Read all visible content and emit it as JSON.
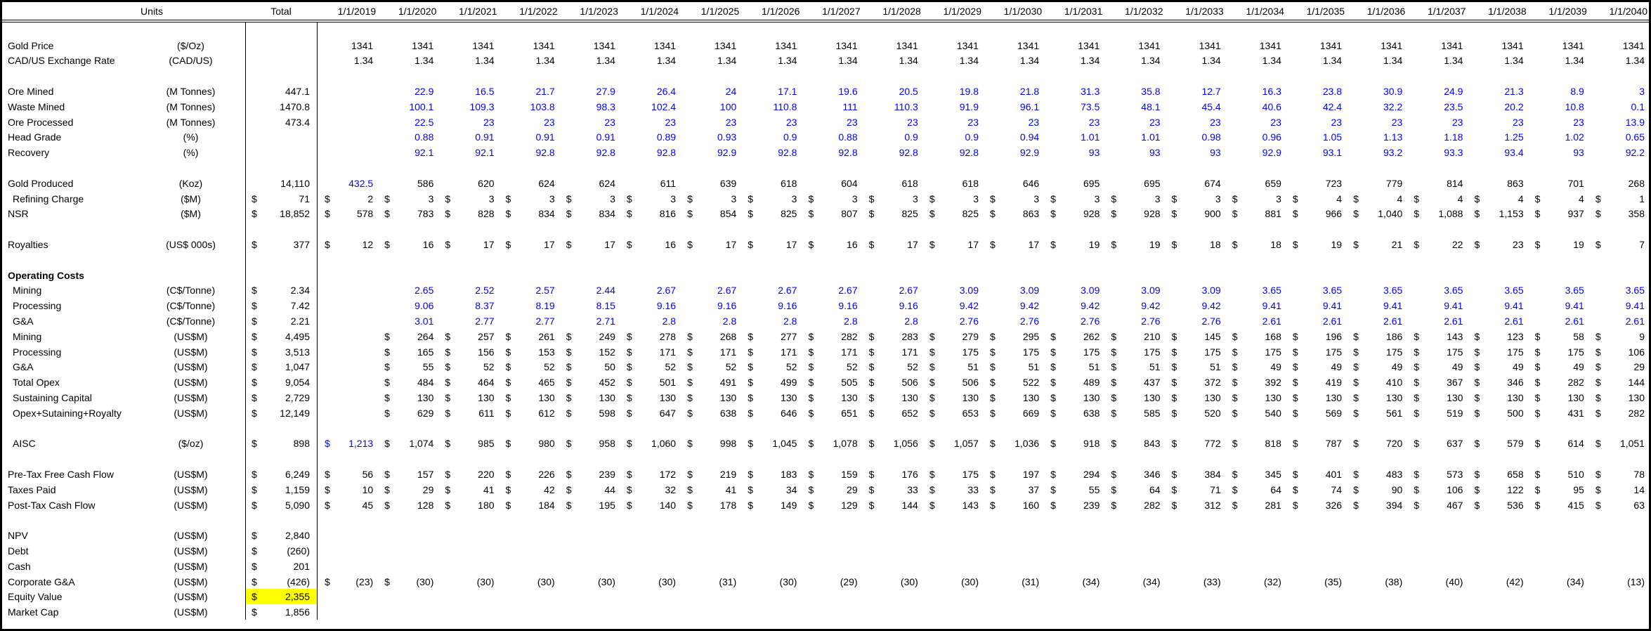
{
  "app": {
    "kind": "spreadsheet-financial-model",
    "description": "Gold mining cash flow model"
  },
  "colors": {
    "input_blue": "#0000ff",
    "text_black": "#000000",
    "highlight_yellow": "#ffff00",
    "grid_line": "#000000",
    "background": "#ffffff"
  },
  "table": {
    "header": {
      "units_label": "Units",
      "total_label": "Total",
      "year_columns": [
        "1/1/2019",
        "1/1/2020",
        "1/1/2021",
        "1/1/2022",
        "1/1/2023",
        "1/1/2024",
        "1/1/2025",
        "1/1/2026",
        "1/1/2027",
        "1/1/2028",
        "1/1/2029",
        "1/1/2030",
        "1/1/2031",
        "1/1/2032",
        "1/1/2033",
        "1/1/2034",
        "1/1/2035",
        "1/1/2036",
        "1/1/2037",
        "1/1/2038",
        "1/1/2039",
        "1/1/2040"
      ]
    },
    "currency_symbol": "$",
    "rows": [
      {
        "kind": "spacer"
      },
      {
        "kind": "data",
        "label": "Gold Price",
        "units": "($/Oz)",
        "indent": false,
        "total": null,
        "cur": "none",
        "blue": "none",
        "values": [
          "1341",
          "1341",
          "1341",
          "1341",
          "1341",
          "1341",
          "1341",
          "1341",
          "1341",
          "1341",
          "1341",
          "1341",
          "1341",
          "1341",
          "1341",
          "1341",
          "1341",
          "1341",
          "1341",
          "1341",
          "1341",
          "1341"
        ]
      },
      {
        "kind": "data",
        "label": "CAD/US Exchange Rate",
        "units": "(CAD/US)",
        "indent": false,
        "total": null,
        "cur": "none",
        "blue": "none",
        "values": [
          "1.34",
          "1.34",
          "1.34",
          "1.34",
          "1.34",
          "1.34",
          "1.34",
          "1.34",
          "1.34",
          "1.34",
          "1.34",
          "1.34",
          "1.34",
          "1.34",
          "1.34",
          "1.34",
          "1.34",
          "1.34",
          "1.34",
          "1.34",
          "1.34",
          "1.34"
        ]
      },
      {
        "kind": "spacer"
      },
      {
        "kind": "data",
        "label": "Ore Mined",
        "units": "(M Tonnes)",
        "indent": false,
        "total": {
          "v": "447.1",
          "cur": false,
          "hl": false
        },
        "cur": "none",
        "blue": "all",
        "values": [
          "",
          "22.9",
          "16.5",
          "21.7",
          "27.9",
          "26.4",
          "24",
          "17.1",
          "19.6",
          "20.5",
          "19.8",
          "21.8",
          "31.3",
          "35.8",
          "12.7",
          "16.3",
          "23.8",
          "30.9",
          "24.9",
          "21.3",
          "8.9",
          "3"
        ]
      },
      {
        "kind": "data",
        "label": "Waste Mined",
        "units": "(M Tonnes)",
        "indent": false,
        "total": {
          "v": "1470.8",
          "cur": false,
          "hl": false
        },
        "cur": "none",
        "blue": "all",
        "values": [
          "",
          "100.1",
          "109.3",
          "103.8",
          "98.3",
          "102.4",
          "100",
          "110.8",
          "111",
          "110.3",
          "91.9",
          "96.1",
          "73.5",
          "48.1",
          "45.4",
          "40.6",
          "42.4",
          "32.2",
          "23.5",
          "20.2",
          "10.8",
          "0.1"
        ]
      },
      {
        "kind": "data",
        "label": "Ore Processed",
        "units": "(M Tonnes)",
        "indent": false,
        "total": {
          "v": "473.4",
          "cur": false,
          "hl": false
        },
        "cur": "none",
        "blue": "all",
        "values": [
          "",
          "22.5",
          "23",
          "23",
          "23",
          "23",
          "23",
          "23",
          "23",
          "23",
          "23",
          "23",
          "23",
          "23",
          "23",
          "23",
          "23",
          "23",
          "23",
          "23",
          "23",
          "13.9"
        ]
      },
      {
        "kind": "data",
        "label": "Head Grade",
        "units": "(%)",
        "indent": false,
        "total": null,
        "cur": "none",
        "blue": "all",
        "values": [
          "",
          "0.88",
          "0.91",
          "0.91",
          "0.91",
          "0.89",
          "0.93",
          "0.9",
          "0.88",
          "0.9",
          "0.9",
          "0.94",
          "1.01",
          "1.01",
          "0.98",
          "0.96",
          "1.05",
          "1.13",
          "1.18",
          "1.25",
          "1.02",
          "0.65"
        ]
      },
      {
        "kind": "data",
        "label": "Recovery",
        "units": "(%)",
        "indent": false,
        "total": null,
        "cur": "none",
        "blue": "all",
        "values": [
          "",
          "92.1",
          "92.1",
          "92.8",
          "92.8",
          "92.8",
          "92.9",
          "92.8",
          "92.8",
          "92.8",
          "92.8",
          "92.9",
          "93",
          "93",
          "93",
          "92.9",
          "93.1",
          "93.2",
          "93.3",
          "93.4",
          "93",
          "92.2"
        ]
      },
      {
        "kind": "spacer"
      },
      {
        "kind": "data",
        "label": "Gold Produced",
        "units": "(Koz)",
        "indent": false,
        "total": {
          "v": "14,110",
          "cur": false,
          "hl": false
        },
        "cur": "none",
        "blue": [
          0
        ],
        "values": [
          "432.5",
          "586",
          "620",
          "624",
          "624",
          "611",
          "639",
          "618",
          "604",
          "618",
          "618",
          "646",
          "695",
          "695",
          "674",
          "659",
          "723",
          "779",
          "814",
          "863",
          "701",
          "268"
        ]
      },
      {
        "kind": "data",
        "label": "Refining Charge",
        "units": "($M)",
        "indent": true,
        "total": {
          "v": "71",
          "cur": true,
          "hl": false
        },
        "cur": "all",
        "blue": "none",
        "values": [
          "2",
          "3",
          "3",
          "3",
          "3",
          "3",
          "3",
          "3",
          "3",
          "3",
          "3",
          "3",
          "3",
          "3",
          "3",
          "3",
          "4",
          "4",
          "4",
          "4",
          "4",
          "1"
        ]
      },
      {
        "kind": "data",
        "label": "NSR",
        "units": "($M)",
        "indent": false,
        "total": {
          "v": "18,852",
          "cur": true,
          "hl": false
        },
        "cur": "all",
        "blue": "none",
        "values": [
          "578",
          "783",
          "828",
          "834",
          "834",
          "816",
          "854",
          "825",
          "807",
          "825",
          "825",
          "863",
          "928",
          "928",
          "900",
          "881",
          "966",
          "1,040",
          "1,088",
          "1,153",
          "937",
          "358"
        ]
      },
      {
        "kind": "spacer"
      },
      {
        "kind": "data",
        "label": "Royalties",
        "units": "(US$ 000s)",
        "indent": false,
        "total": {
          "v": "377",
          "cur": true,
          "hl": false
        },
        "cur": "all",
        "blue": "none",
        "values": [
          "12",
          "16",
          "17",
          "17",
          "17",
          "16",
          "17",
          "17",
          "16",
          "17",
          "17",
          "17",
          "19",
          "19",
          "18",
          "18",
          "19",
          "21",
          "22",
          "23",
          "19",
          "7"
        ]
      },
      {
        "kind": "spacer"
      },
      {
        "kind": "section",
        "label": "Operating Costs",
        "units": "",
        "total": null,
        "values": []
      },
      {
        "kind": "data",
        "label": "Mining",
        "units": "(C$/Tonne)",
        "indent": true,
        "total": {
          "v": "2.34",
          "cur": true,
          "hl": false
        },
        "cur": "none",
        "blue": "all",
        "values": [
          "",
          "2.65",
          "2.52",
          "2.57",
          "2.44",
          "2.67",
          "2.67",
          "2.67",
          "2.67",
          "2.67",
          "3.09",
          "3.09",
          "3.09",
          "3.09",
          "3.09",
          "3.65",
          "3.65",
          "3.65",
          "3.65",
          "3.65",
          "3.65",
          "3.65"
        ]
      },
      {
        "kind": "data",
        "label": "Processing",
        "units": "(C$/Tonne)",
        "indent": true,
        "total": {
          "v": "7.42",
          "cur": true,
          "hl": false
        },
        "cur": "none",
        "blue": "all",
        "values": [
          "",
          "9.06",
          "8.37",
          "8.19",
          "8.15",
          "9.16",
          "9.16",
          "9.16",
          "9.16",
          "9.16",
          "9.42",
          "9.42",
          "9.42",
          "9.42",
          "9.42",
          "9.41",
          "9.41",
          "9.41",
          "9.41",
          "9.41",
          "9.41",
          "9.41"
        ]
      },
      {
        "kind": "data",
        "label": "G&A",
        "units": "(C$/Tonne)",
        "indent": true,
        "total": {
          "v": "2.21",
          "cur": true,
          "hl": false
        },
        "cur": "none",
        "blue": "all",
        "values": [
          "",
          "3.01",
          "2.77",
          "2.77",
          "2.71",
          "2.8",
          "2.8",
          "2.8",
          "2.8",
          "2.8",
          "2.76",
          "2.76",
          "2.76",
          "2.76",
          "2.76",
          "2.61",
          "2.61",
          "2.61",
          "2.61",
          "2.61",
          "2.61",
          "2.61"
        ]
      },
      {
        "kind": "data",
        "label": "Mining",
        "units": "(US$M)",
        "indent": true,
        "total": {
          "v": "4,495",
          "cur": true,
          "hl": false
        },
        "cur": "all",
        "blue": "none",
        "values": [
          "",
          "264",
          "257",
          "261",
          "249",
          "278",
          "268",
          "277",
          "282",
          "283",
          "279",
          "295",
          "262",
          "210",
          "145",
          "168",
          "196",
          "186",
          "143",
          "123",
          "58",
          "9"
        ]
      },
      {
        "kind": "data",
        "label": "Processing",
        "units": "(US$M)",
        "indent": true,
        "total": {
          "v": "3,513",
          "cur": true,
          "hl": false
        },
        "cur": "all",
        "blue": "none",
        "values": [
          "",
          "165",
          "156",
          "153",
          "152",
          "171",
          "171",
          "171",
          "171",
          "171",
          "175",
          "175",
          "175",
          "175",
          "175",
          "175",
          "175",
          "175",
          "175",
          "175",
          "175",
          "106"
        ]
      },
      {
        "kind": "data",
        "label": "G&A",
        "units": "(US$M)",
        "indent": true,
        "total": {
          "v": "1,047",
          "cur": true,
          "hl": false
        },
        "cur": "all",
        "blue": "none",
        "values": [
          "",
          "55",
          "52",
          "52",
          "50",
          "52",
          "52",
          "52",
          "52",
          "52",
          "51",
          "51",
          "51",
          "51",
          "51",
          "49",
          "49",
          "49",
          "49",
          "49",
          "49",
          "29"
        ]
      },
      {
        "kind": "data",
        "label": "Total Opex",
        "units": "(US$M)",
        "indent": true,
        "total": {
          "v": "9,054",
          "cur": true,
          "hl": false
        },
        "cur": "all",
        "blue": "none",
        "values": [
          "",
          "484",
          "464",
          "465",
          "452",
          "501",
          "491",
          "499",
          "505",
          "506",
          "506",
          "522",
          "489",
          "437",
          "372",
          "392",
          "419",
          "410",
          "367",
          "346",
          "282",
          "144"
        ]
      },
      {
        "kind": "data",
        "label": "Sustaining Capital",
        "units": "(US$M)",
        "indent": true,
        "total": {
          "v": "2,729",
          "cur": true,
          "hl": false
        },
        "cur": "all",
        "blue": "none",
        "values": [
          "",
          "130",
          "130",
          "130",
          "130",
          "130",
          "130",
          "130",
          "130",
          "130",
          "130",
          "130",
          "130",
          "130",
          "130",
          "130",
          "130",
          "130",
          "130",
          "130",
          "130",
          "130"
        ]
      },
      {
        "kind": "data",
        "label": "Opex+Sutaining+Royalty",
        "units": "(US$M)",
        "indent": true,
        "total": {
          "v": "12,149",
          "cur": true,
          "hl": false
        },
        "cur": "all",
        "blue": "none",
        "values": [
          "",
          "629",
          "611",
          "612",
          "598",
          "647",
          "638",
          "646",
          "651",
          "652",
          "653",
          "669",
          "638",
          "585",
          "520",
          "540",
          "569",
          "561",
          "519",
          "500",
          "431",
          "282"
        ]
      },
      {
        "kind": "spacer"
      },
      {
        "kind": "data",
        "label": "AISC",
        "units": "($/oz)",
        "indent": true,
        "total": {
          "v": "898",
          "cur": true,
          "hl": false
        },
        "cur": "all",
        "blue": [
          0
        ],
        "values": [
          "1,213",
          "1,074",
          "985",
          "980",
          "958",
          "1,060",
          "998",
          "1,045",
          "1,078",
          "1,056",
          "1,057",
          "1,036",
          "918",
          "843",
          "772",
          "818",
          "787",
          "720",
          "637",
          "579",
          "614",
          "1,051"
        ]
      },
      {
        "kind": "spacer"
      },
      {
        "kind": "data",
        "label": "Pre-Tax Free Cash Flow",
        "units": "(US$M)",
        "indent": false,
        "total": {
          "v": "6,249",
          "cur": true,
          "hl": false
        },
        "cur": "all",
        "blue": "none",
        "values": [
          "56",
          "157",
          "220",
          "226",
          "239",
          "172",
          "219",
          "183",
          "159",
          "176",
          "175",
          "197",
          "294",
          "346",
          "384",
          "345",
          "401",
          "483",
          "573",
          "658",
          "510",
          "78"
        ]
      },
      {
        "kind": "data",
        "label": "Taxes Paid",
        "units": "(US$M)",
        "indent": false,
        "total": {
          "v": "1,159",
          "cur": true,
          "hl": false
        },
        "cur": "all",
        "blue": "none",
        "values": [
          "10",
          "29",
          "41",
          "42",
          "44",
          "32",
          "41",
          "34",
          "29",
          "33",
          "33",
          "37",
          "55",
          "64",
          "71",
          "64",
          "74",
          "90",
          "106",
          "122",
          "95",
          "14"
        ]
      },
      {
        "kind": "data",
        "label": "Post-Tax Cash Flow",
        "units": "(US$M)",
        "indent": false,
        "total": {
          "v": "5,090",
          "cur": true,
          "hl": false
        },
        "cur": "all",
        "blue": "none",
        "values": [
          "45",
          "128",
          "180",
          "184",
          "195",
          "140",
          "178",
          "149",
          "129",
          "144",
          "143",
          "160",
          "239",
          "282",
          "312",
          "281",
          "326",
          "394",
          "467",
          "536",
          "415",
          "63"
        ]
      },
      {
        "kind": "spacer"
      },
      {
        "kind": "data",
        "label": "NPV",
        "units": "(US$M)",
        "indent": false,
        "total": {
          "v": "2,840",
          "cur": true,
          "hl": false
        },
        "cur": "none",
        "blue": "none",
        "values": []
      },
      {
        "kind": "data",
        "label": "Debt",
        "units": "(US$M)",
        "indent": false,
        "total": {
          "v": "(260)",
          "cur": true,
          "hl": false
        },
        "cur": "none",
        "blue": "none",
        "values": []
      },
      {
        "kind": "data",
        "label": "Cash",
        "units": "(US$M)",
        "indent": false,
        "total": {
          "v": "201",
          "cur": true,
          "hl": false
        },
        "cur": "none",
        "blue": "none",
        "values": []
      },
      {
        "kind": "data",
        "label": "Corporate G&A",
        "units": "(US$M)",
        "indent": false,
        "total": {
          "v": "(426)",
          "cur": true,
          "hl": false
        },
        "cur": [
          0,
          1
        ],
        "blue": "none",
        "values": [
          "(23)",
          "(30)",
          "(30)",
          "(30)",
          "(30)",
          "(30)",
          "(31)",
          "(30)",
          "(29)",
          "(30)",
          "(30)",
          "(31)",
          "(34)",
          "(34)",
          "(33)",
          "(32)",
          "(35)",
          "(38)",
          "(40)",
          "(42)",
          "(34)",
          "(13)"
        ]
      },
      {
        "kind": "data",
        "label": "Equity Value",
        "units": "(US$M)",
        "indent": false,
        "total": {
          "v": "2,355",
          "cur": true,
          "hl": true
        },
        "cur": "none",
        "blue": "none",
        "values": []
      },
      {
        "kind": "data",
        "label": "Market Cap",
        "units": "(US$M)",
        "indent": false,
        "total": {
          "v": "1,856",
          "cur": true,
          "hl": false
        },
        "cur": "none",
        "blue": "none",
        "values": []
      }
    ]
  }
}
